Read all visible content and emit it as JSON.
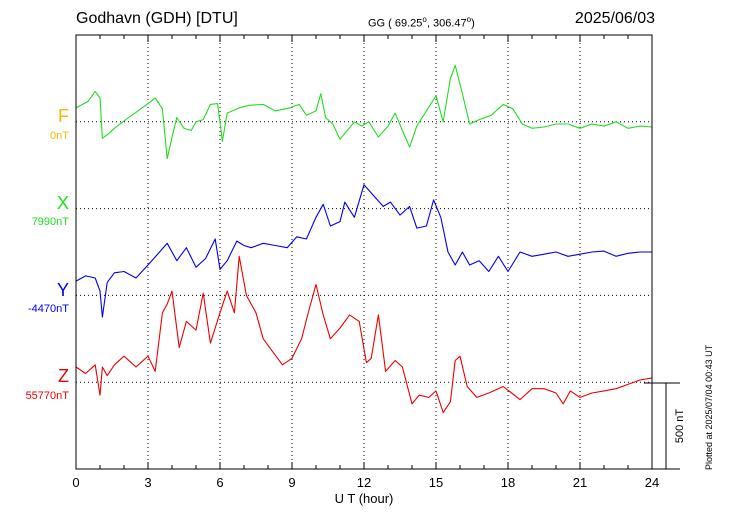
{
  "header": {
    "station": "Godhavn (GDH)  [DTU]",
    "coords_prefix": "GG ( 69.25",
    "coords_mid": ", 306.47",
    "coords_suffix": ")",
    "deg": "o",
    "date": "2025/06/03"
  },
  "plotted_note": "Plotted at 2025/07/04 00:43 UT",
  "scale_label": "500 nT",
  "components": [
    {
      "name": "F",
      "baseline": "0nT",
      "color": "#f5b800"
    },
    {
      "name": "X",
      "baseline": "7990nT",
      "color": "#22dd22"
    },
    {
      "name": "Y",
      "baseline": "-4470nT",
      "color": "#0000ee"
    },
    {
      "name": "Z",
      "baseline": "55770nT",
      "color": "#ee0000"
    }
  ],
  "chart_data": {
    "type": "line",
    "xlabel": "U T (hour)",
    "xlim": [
      0,
      24
    ],
    "xticks": [
      "0",
      "3",
      "6",
      "9",
      "12",
      "15",
      "18",
      "21",
      "24"
    ],
    "ylim": [
      -1000,
      0
    ],
    "grid": true,
    "series": [
      {
        "name": "F",
        "color": "#f5b800",
        "x": [],
        "y": []
      },
      {
        "name": "X",
        "color": "#22dd22",
        "x": [
          0,
          0.5,
          0.8,
          1,
          1.1,
          1.3,
          1.6,
          2,
          2.5,
          3,
          3.3,
          3.6,
          3.8,
          4,
          4.2,
          4.5,
          4.8,
          5,
          5.3,
          5.6,
          5.9,
          6.1,
          6.3,
          6.8,
          7.2,
          7.8,
          8.3,
          8.9,
          9.3,
          9.6,
          10,
          10.2,
          10.4,
          10.7,
          11,
          11.3,
          11.6,
          11.9,
          12.2,
          12.6,
          13,
          13.3,
          13.6,
          13.9,
          14.2,
          14.6,
          15,
          15.3,
          15.6,
          15.8,
          16.1,
          16.4,
          16.8,
          17.3,
          17.8,
          18.2,
          18.6,
          19,
          19.5,
          20,
          20.5,
          21,
          21.5,
          22,
          22.5,
          23,
          23.5,
          24
        ],
        "y": [
          -168,
          -153,
          -130,
          -145,
          -238,
          -230,
          -215,
          -198,
          -178,
          -158,
          -145,
          -170,
          -285,
          -236,
          -190,
          -215,
          -220,
          -200,
          -195,
          -160,
          -158,
          -245,
          -180,
          -168,
          -162,
          -160,
          -175,
          -168,
          -160,
          -185,
          -175,
          -135,
          -190,
          -205,
          -240,
          -220,
          -200,
          -210,
          -200,
          -235,
          -210,
          -180,
          -220,
          -258,
          -210,
          -175,
          -140,
          -200,
          -100,
          -70,
          -135,
          -205,
          -195,
          -185,
          -160,
          -170,
          -205,
          -215,
          -212,
          -205,
          -205,
          -215,
          -205,
          -210,
          -200,
          -215,
          -210,
          -212
        ]
      },
      {
        "name": "Y",
        "color": "#0000ee",
        "x": [
          0,
          0.4,
          0.8,
          1,
          1.1,
          1.3,
          1.6,
          2,
          2.5,
          3,
          3.4,
          3.8,
          4.2,
          4.6,
          5,
          5.4,
          5.8,
          6,
          6.3,
          6.7,
          7,
          7.3,
          7.8,
          8.3,
          8.8,
          9.2,
          9.6,
          10,
          10.3,
          10.6,
          11,
          11.2,
          11.6,
          12,
          12.4,
          12.8,
          13.1,
          13.5,
          13.9,
          14.2,
          14.6,
          14.9,
          15.2,
          15.5,
          15.8,
          16.1,
          16.4,
          16.8,
          17.2,
          17.6,
          18,
          18.5,
          19,
          19.5,
          20,
          20.5,
          21,
          21.5,
          22,
          22.5,
          23,
          23.5,
          24
        ],
        "y": [
          -567,
          -555,
          -560,
          -590,
          -650,
          -570,
          -548,
          -545,
          -560,
          -530,
          -505,
          -480,
          -520,
          -490,
          -535,
          -515,
          -470,
          -540,
          -520,
          -475,
          -485,
          -490,
          -480,
          -485,
          -490,
          -465,
          -470,
          -420,
          -390,
          -440,
          -430,
          -385,
          -420,
          -345,
          -370,
          -395,
          -385,
          -415,
          -395,
          -445,
          -440,
          -380,
          -420,
          -500,
          -530,
          -500,
          -530,
          -520,
          -545,
          -510,
          -545,
          -500,
          -510,
          -505,
          -500,
          -510,
          -505,
          -500,
          -498,
          -510,
          -503,
          -500,
          -500
        ]
      },
      {
        "name": "Z",
        "color": "#ee0000",
        "x": [
          0,
          0.4,
          0.8,
          1,
          1.1,
          1.3,
          1.6,
          2,
          2.5,
          3,
          3.3,
          3.6,
          3.8,
          4,
          4.3,
          4.6,
          5,
          5.3,
          5.6,
          6,
          6.3,
          6.6,
          6.8,
          7.1,
          7.5,
          7.8,
          8.2,
          8.6,
          9,
          9.4,
          9.7,
          10,
          10.3,
          10.6,
          11,
          11.4,
          11.8,
          12.1,
          12.3,
          12.6,
          12.9,
          13.3,
          13.6,
          14,
          14.3,
          14.7,
          15,
          15.3,
          15.6,
          15.8,
          16,
          16.3,
          16.7,
          17.2,
          17.8,
          18.5,
          19,
          19.5,
          20,
          20.3,
          20.6,
          21,
          21.5,
          22,
          22.5,
          23,
          23.5,
          24
        ],
        "y": [
          -765,
          -780,
          -760,
          -830,
          -765,
          -785,
          -760,
          -740,
          -765,
          -740,
          -775,
          -640,
          -620,
          -590,
          -720,
          -660,
          -680,
          -595,
          -710,
          -640,
          -590,
          -640,
          -510,
          -600,
          -640,
          -700,
          -730,
          -760,
          -745,
          -700,
          -635,
          -575,
          -645,
          -700,
          -675,
          -645,
          -660,
          -755,
          -745,
          -645,
          -775,
          -750,
          -765,
          -850,
          -830,
          -835,
          -820,
          -870,
          -845,
          -750,
          -740,
          -810,
          -835,
          -825,
          -810,
          -840,
          -815,
          -815,
          -825,
          -850,
          -820,
          -835,
          -825,
          -820,
          -815,
          -805,
          -795,
          -790
        ]
      }
    ]
  }
}
